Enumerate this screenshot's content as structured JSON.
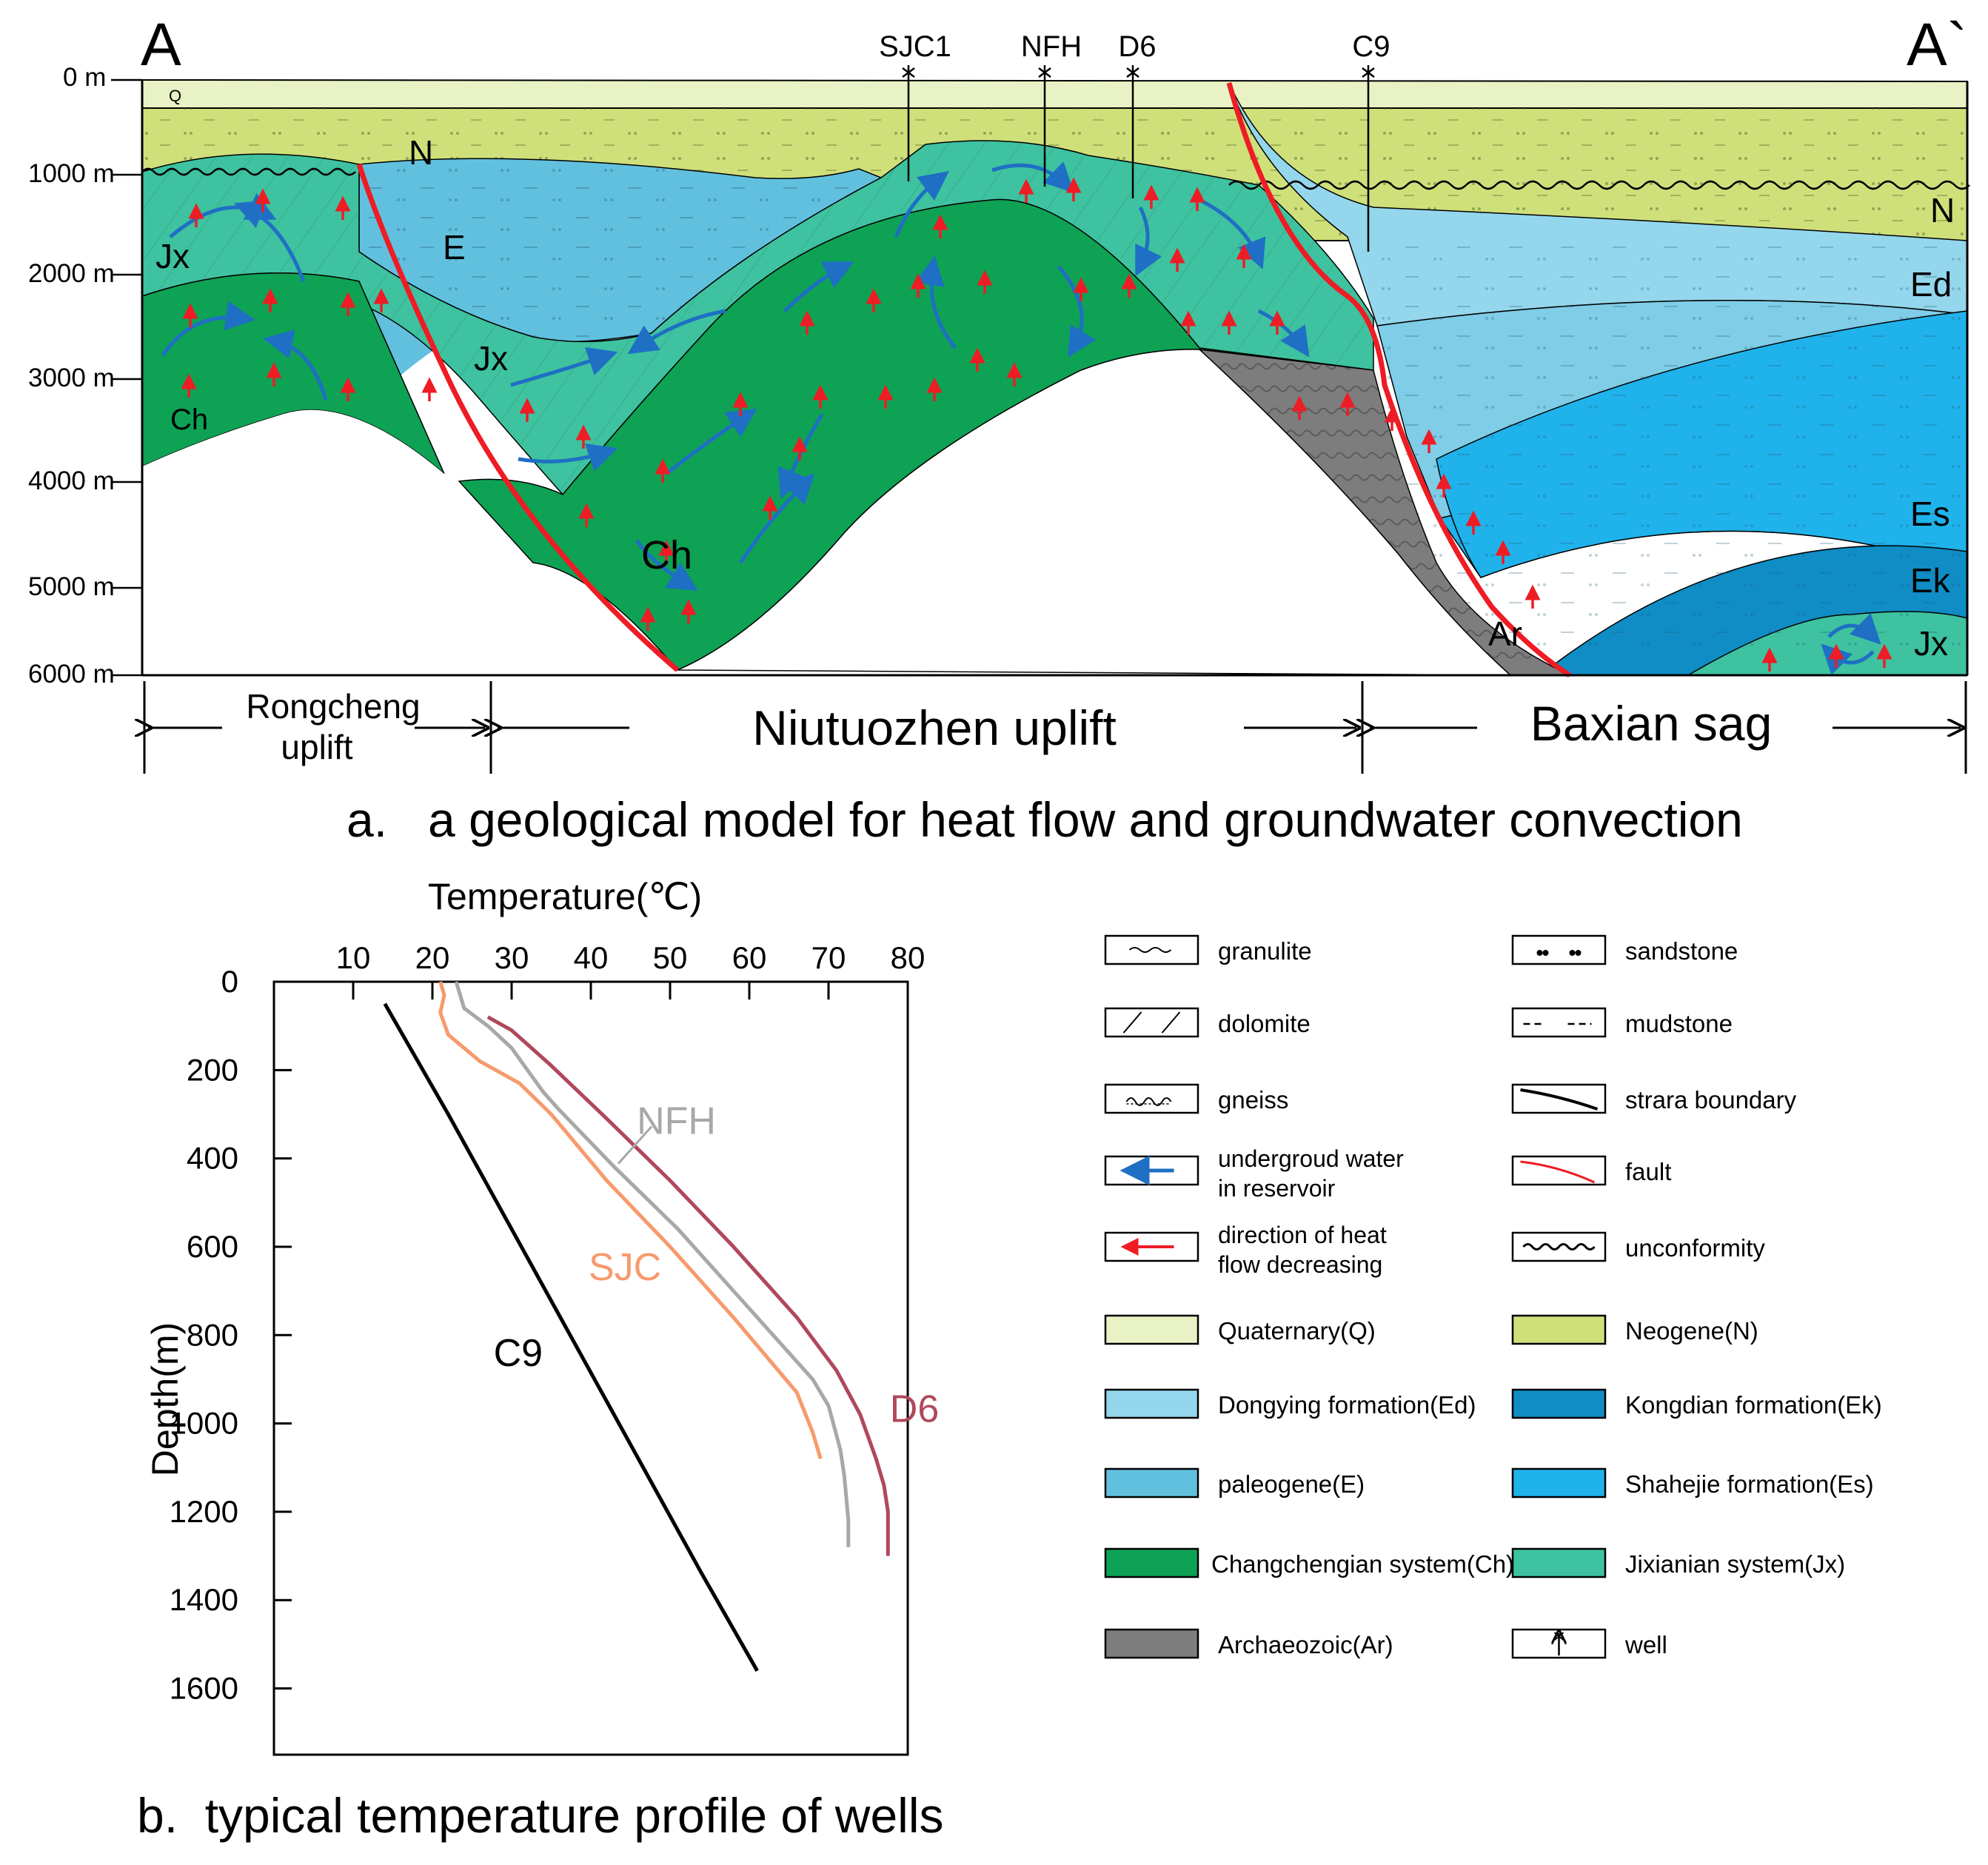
{
  "section": {
    "end_left": "A",
    "end_right": "A`",
    "depth_labels": [
      "0 m",
      "1000 m",
      "2000 m",
      "3000 m",
      "4000 m",
      "5000 m",
      "6000 m"
    ],
    "wells": [
      "SJC1",
      "NFH",
      "D6",
      "C9"
    ],
    "unit_labels": {
      "q": "Q",
      "n_left": "N",
      "n_right": "N",
      "e": "E",
      "ed": "Ed",
      "es": "Es",
      "ek": "Ek",
      "jx_left": "Jx",
      "jx_mid": "Jx",
      "jx_right": "Jx",
      "ch_left": "Ch",
      "ch_mid": "Ch",
      "ar": "Ar"
    },
    "regions": {
      "rongcheng_line1": "Rongcheng",
      "rongcheng_line2": "uplift",
      "niutuozhen": "Niutuozhen uplift",
      "baxian": "Baxian sag"
    },
    "caption": "a.   a geological model for heat flow and groundwater convection"
  },
  "chart_data": {
    "type": "line",
    "title": "",
    "xlabel": "Temperature(℃)",
    "ylabel": "Depth(m)",
    "xlim": [
      0,
      80
    ],
    "ylim": [
      0,
      1750
    ],
    "x_ticks": [
      10,
      20,
      30,
      40,
      50,
      60,
      70,
      80
    ],
    "y_ticks": [
      0,
      200,
      400,
      600,
      800,
      1000,
      1200,
      1400,
      1600
    ],
    "x_axis_position": "top",
    "caption": "b.  typical temperature profile of wells",
    "series": [
      {
        "name": "C9",
        "color": "#000000",
        "points": [
          [
            14,
            50
          ],
          [
            22,
            300
          ],
          [
            30,
            560
          ],
          [
            38,
            820
          ],
          [
            46,
            1080
          ],
          [
            54,
            1340
          ],
          [
            61,
            1560
          ]
        ]
      },
      {
        "name": "SJC",
        "color": "#f79a6c",
        "points": [
          [
            21,
            0
          ],
          [
            21.5,
            30
          ],
          [
            21,
            70
          ],
          [
            22,
            120
          ],
          [
            26,
            180
          ],
          [
            31,
            230
          ],
          [
            35,
            300
          ],
          [
            42,
            450
          ],
          [
            50,
            600
          ],
          [
            58,
            760
          ],
          [
            66,
            930
          ],
          [
            68,
            1020
          ],
          [
            69,
            1080
          ]
        ]
      },
      {
        "name": "NFH",
        "color": "#a8a8a8",
        "points": [
          [
            23,
            0
          ],
          [
            24,
            60
          ],
          [
            27,
            100
          ],
          [
            30,
            150
          ],
          [
            32,
            200
          ],
          [
            34,
            250
          ],
          [
            36,
            290
          ],
          [
            43,
            420
          ],
          [
            51,
            560
          ],
          [
            59,
            720
          ],
          [
            68,
            900
          ],
          [
            70,
            960
          ],
          [
            71.5,
            1060
          ],
          [
            72,
            1120
          ],
          [
            72.5,
            1220
          ],
          [
            72.5,
            1280
          ]
        ]
      },
      {
        "name": "D6",
        "color": "#b0485c",
        "points": [
          [
            27,
            80
          ],
          [
            30,
            110
          ],
          [
            35,
            190
          ],
          [
            42,
            310
          ],
          [
            50,
            450
          ],
          [
            58,
            600
          ],
          [
            66,
            760
          ],
          [
            71,
            880
          ],
          [
            74,
            980
          ],
          [
            76,
            1080
          ],
          [
            77,
            1140
          ],
          [
            77.5,
            1200
          ],
          [
            77.5,
            1300
          ]
        ]
      }
    ]
  },
  "legend": {
    "items": [
      {
        "label": "granulite",
        "pattern": "granulite"
      },
      {
        "label": "sandstone",
        "pattern": "sandstone"
      },
      {
        "label": "dolomite",
        "pattern": "dolomite"
      },
      {
        "label": "mudstone",
        "pattern": "mudstone"
      },
      {
        "label": "gneiss",
        "pattern": "gneiss"
      },
      {
        "label": "strara boundary",
        "pattern": "boundary"
      },
      {
        "label": "undergroud water in reservoir",
        "label_lines": [
          "undergroud water",
          "in reservoir"
        ],
        "pattern": "water"
      },
      {
        "label": "fault",
        "pattern": "fault"
      },
      {
        "label": "direction of heat flow decreasing",
        "label_lines": [
          "direction of heat",
          "flow decreasing"
        ],
        "pattern": "heat"
      },
      {
        "label": "unconformity",
        "pattern": "unconformity"
      },
      {
        "label": "Quaternary(Q)",
        "fill": "#e8f2c4"
      },
      {
        "label": "Neogene(N)",
        "fill": "#cfe07a"
      },
      {
        "label": "Dongying formation(Ed)",
        "fill": "#94d6ec"
      },
      {
        "label": "Kongdian formation(Ek)",
        "fill": "#0f8dc4"
      },
      {
        "label": "paleogene(E)",
        "fill": "#62c0df"
      },
      {
        "label": "Shahejie formation(Es)",
        "fill": "#20b2ea"
      },
      {
        "label": "Changchengian system(Ch)",
        "fill": "#0ea254"
      },
      {
        "label": "Jixianian system(Jx)",
        "fill": "#3ec2a0"
      },
      {
        "label": "Archaeozoic(Ar)",
        "fill": "#7d7d7d"
      },
      {
        "label": "well",
        "pattern": "well"
      }
    ]
  },
  "colors": {
    "quaternary": "#e8f2c4",
    "neogene": "#cfe07a",
    "dongying": "#94d6ec",
    "paleogene": "#62c0df",
    "shahejie": "#20b2ea",
    "kongdian": "#0f8dc4",
    "changcheng": "#0ea254",
    "jixian": "#3ec2a0",
    "archaeozoic": "#7d7d7d",
    "fault": "#ee1c24",
    "water_arrow": "#1f6fc4",
    "heat_arrow": "#ee1c24"
  }
}
